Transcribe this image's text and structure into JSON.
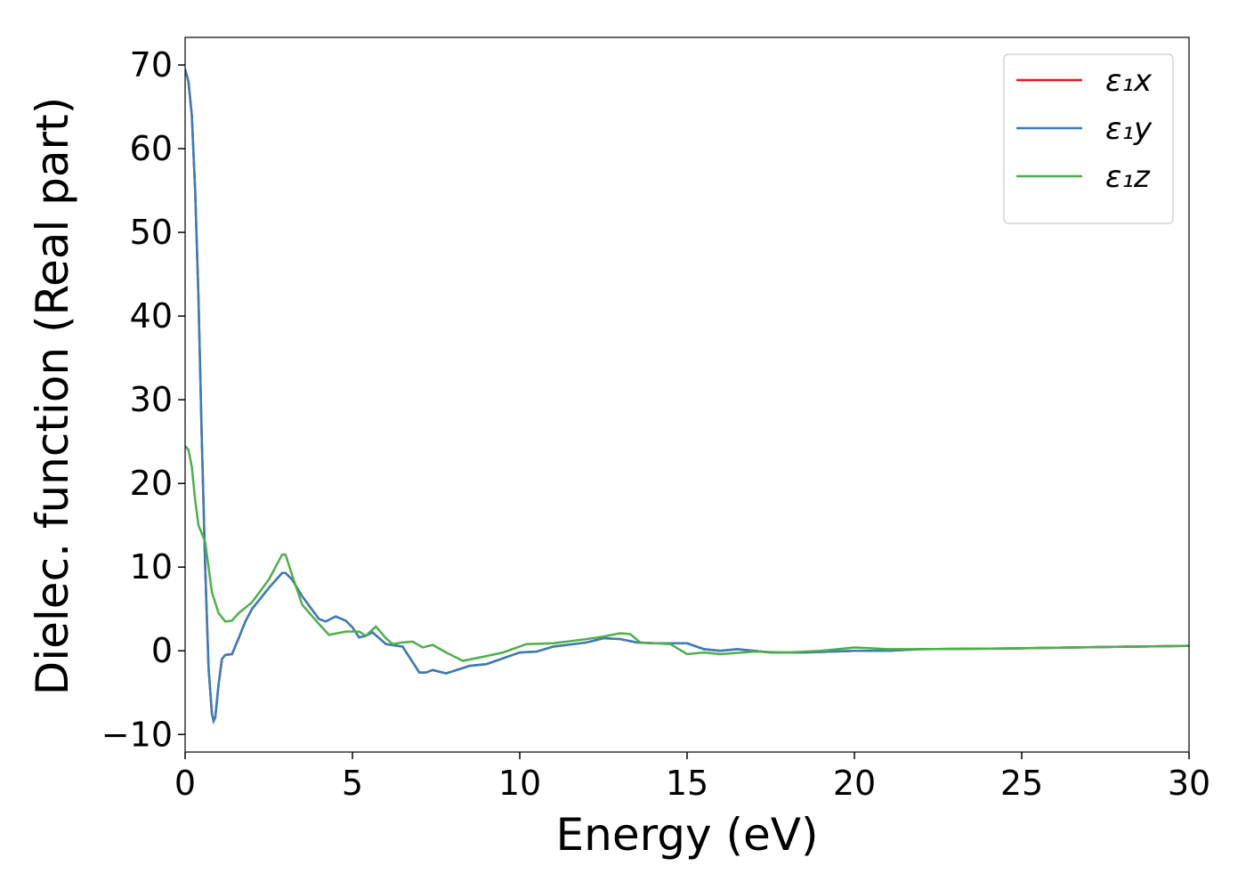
{
  "chart_data": {
    "type": "line",
    "xlabel": "Energy (eV)",
    "ylabel": "Dielec. function (Real part)",
    "xlim": [
      0,
      30
    ],
    "ylim": [
      -12.1,
      73.3
    ],
    "xticks": [
      0,
      5,
      10,
      15,
      20,
      25,
      30
    ],
    "yticks": [
      {
        "value": -10,
        "label": "−10"
      },
      0,
      10,
      20,
      30,
      40,
      50,
      60,
      70
    ],
    "grid": false,
    "legend": "upper right",
    "series": [
      {
        "name": "ε₁x",
        "color": "#e41a1c",
        "x": [
          0,
          0.1,
          0.2,
          0.3,
          0.4,
          0.5,
          0.6,
          0.7,
          0.8,
          0.85,
          0.9,
          1.0,
          1.1,
          1.2,
          1.4,
          1.6,
          1.8,
          2.0,
          2.5,
          2.9,
          3.0,
          3.2,
          3.5,
          4.0,
          4.2,
          4.5,
          4.8,
          5.0,
          5.2,
          5.4,
          5.6,
          5.8,
          6.0,
          6.5,
          7.0,
          7.2,
          7.4,
          7.8,
          8.5,
          9.0,
          10.0,
          10.5,
          11,
          12,
          12.5,
          13,
          13.5,
          14,
          15,
          15.5,
          16,
          16.5,
          17.5,
          18.5,
          20,
          21,
          22,
          25,
          30
        ],
        "values": [
          69.5,
          68,
          64,
          55,
          42,
          25,
          10,
          -2,
          -7.5,
          -8.4,
          -8,
          -4,
          -1,
          -0.5,
          -0.4,
          1.5,
          3.5,
          5,
          7.5,
          9.3,
          9.3,
          8.5,
          6.5,
          3.8,
          3.5,
          4.1,
          3.6,
          2.8,
          1.6,
          1.8,
          2.2,
          1.5,
          0.8,
          0.5,
          -2.6,
          -2.6,
          -2.3,
          -2.7,
          -1.8,
          -1.6,
          -0.2,
          -0.1,
          0.5,
          1,
          1.5,
          1.4,
          1,
          0.9,
          0.9,
          0.2,
          0,
          0.2,
          -0.2,
          -0.2,
          0,
          0,
          0.2,
          0.3,
          0.6
        ]
      },
      {
        "name": "ε₁y",
        "color": "#377eb8",
        "x": [
          0,
          0.1,
          0.2,
          0.3,
          0.4,
          0.5,
          0.6,
          0.7,
          0.8,
          0.85,
          0.9,
          1.0,
          1.1,
          1.2,
          1.4,
          1.6,
          1.8,
          2.0,
          2.5,
          2.9,
          3.0,
          3.2,
          3.5,
          4.0,
          4.2,
          4.5,
          4.8,
          5.0,
          5.2,
          5.4,
          5.6,
          5.8,
          6.0,
          6.5,
          7.0,
          7.2,
          7.4,
          7.8,
          8.5,
          9.0,
          10.0,
          10.5,
          11,
          12,
          12.5,
          13,
          13.5,
          14,
          15,
          15.5,
          16,
          16.5,
          17.5,
          18.5,
          20,
          21,
          22,
          25,
          30
        ],
        "values": [
          69.5,
          68,
          64,
          55,
          42,
          25,
          10,
          -2,
          -7.5,
          -8.4,
          -8,
          -4,
          -1,
          -0.5,
          -0.4,
          1.5,
          3.5,
          5,
          7.5,
          9.3,
          9.3,
          8.5,
          6.5,
          3.8,
          3.5,
          4.1,
          3.6,
          2.8,
          1.6,
          1.8,
          2.2,
          1.5,
          0.8,
          0.5,
          -2.6,
          -2.6,
          -2.3,
          -2.7,
          -1.8,
          -1.6,
          -0.2,
          -0.1,
          0.5,
          1,
          1.5,
          1.4,
          1,
          0.9,
          0.9,
          0.2,
          0,
          0.2,
          -0.2,
          -0.2,
          0,
          0,
          0.2,
          0.3,
          0.6
        ]
      },
      {
        "name": "ε₁z",
        "color": "#4daf4a",
        "x": [
          0,
          0.1,
          0.2,
          0.3,
          0.4,
          0.5,
          0.6,
          0.7,
          0.8,
          1.0,
          1.2,
          1.4,
          1.6,
          2.0,
          2.5,
          2.9,
          3.0,
          3.2,
          3.5,
          4.0,
          4.3,
          4.8,
          5.2,
          5.4,
          5.7,
          6.0,
          6.2,
          6.5,
          6.8,
          7.1,
          7.4,
          7.8,
          8.3,
          8.8,
          9.5,
          10.2,
          11,
          12,
          12.5,
          13,
          13.3,
          13.6,
          14.5,
          15,
          15.5,
          16,
          17,
          18,
          19,
          20,
          20.5,
          21,
          22,
          25,
          30
        ],
        "values": [
          24.5,
          24,
          22,
          18,
          15,
          14,
          13,
          10,
          7,
          4.5,
          3.5,
          3.6,
          4.5,
          5.8,
          8.5,
          11.5,
          11.5,
          9,
          5.5,
          3.2,
          1.9,
          2.3,
          2.3,
          1.8,
          2.9,
          1.5,
          0.8,
          1,
          1.1,
          0.4,
          0.7,
          -0.2,
          -1.2,
          -0.8,
          -0.2,
          0.8,
          0.9,
          1.4,
          1.7,
          2.1,
          2,
          1,
          0.8,
          -0.4,
          -0.2,
          -0.4,
          -0.1,
          -0.2,
          0,
          0.4,
          0.3,
          0.2,
          0.2,
          0.3,
          0.6
        ]
      }
    ]
  }
}
